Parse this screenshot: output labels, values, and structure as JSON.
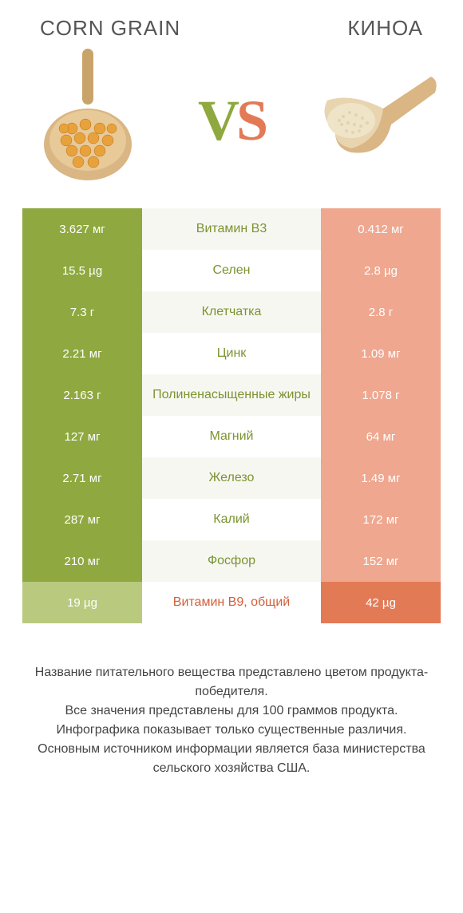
{
  "leftTitle": "CORN GRAIN",
  "rightTitle": "КИНОА",
  "vs": {
    "v": "V",
    "s": "S"
  },
  "colors": {
    "greenWinner": "#8fa83f",
    "greenLoser": "#b9c97e",
    "orangeWinner": "#e37a56",
    "orangeLoser": "#efa78f",
    "rowBgEven": "#ffffff",
    "rowBgOdd": "#f7f7f2",
    "midTextGreen": "#7a9430",
    "midTextOrange": "#d15f3a"
  },
  "rows": [
    {
      "left": "3.627 мг",
      "mid": "Витамин B3",
      "right": "0.412 мг",
      "winner": "left"
    },
    {
      "left": "15.5 µg",
      "mid": "Селен",
      "right": "2.8 µg",
      "winner": "left"
    },
    {
      "left": "7.3 г",
      "mid": "Клетчатка",
      "right": "2.8 г",
      "winner": "left"
    },
    {
      "left": "2.21 мг",
      "mid": "Цинк",
      "right": "1.09 мг",
      "winner": "left"
    },
    {
      "left": "2.163 г",
      "mid": "Полиненасыщенные жиры",
      "right": "1.078 г",
      "winner": "left"
    },
    {
      "left": "127 мг",
      "mid": "Магний",
      "right": "64 мг",
      "winner": "left"
    },
    {
      "left": "2.71 мг",
      "mid": "Железо",
      "right": "1.49 мг",
      "winner": "left"
    },
    {
      "left": "287 мг",
      "mid": "Калий",
      "right": "172 мг",
      "winner": "left"
    },
    {
      "left": "210 мг",
      "mid": "Фосфор",
      "right": "152 мг",
      "winner": "left"
    },
    {
      "left": "19 µg",
      "mid": "Витамин B9, общий",
      "right": "42 µg",
      "winner": "right"
    }
  ],
  "footer": "Название питательного вещества представлено цветом продукта-победителя.\nВсе значения представлены для 100 граммов продукта.\nИнфографика показывает только существенные различия.\nОсновным источником информации является база министерства сельского хозяйства США."
}
